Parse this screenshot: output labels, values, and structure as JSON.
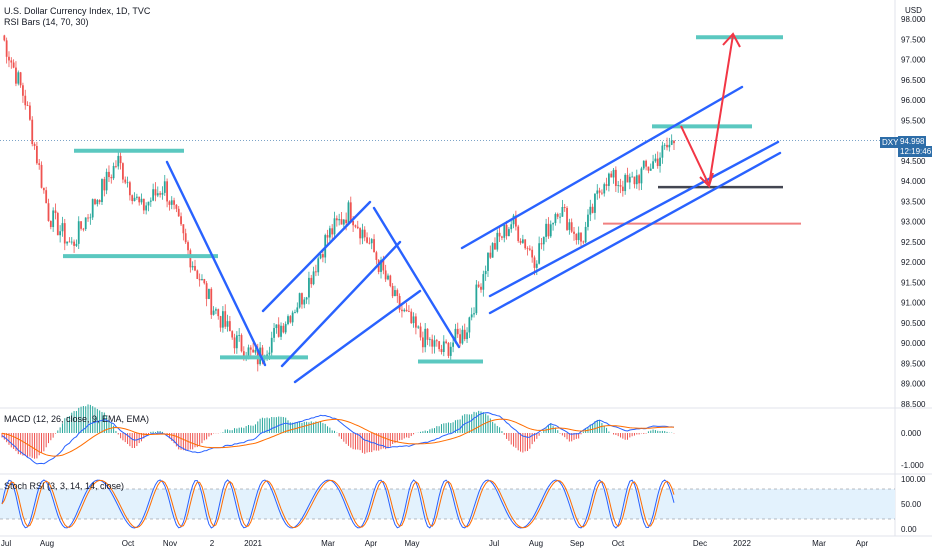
{
  "header": {
    "title": "U.S. Dollar Currency Index, 1D, TVC",
    "indicator": "RSI Bars (14, 70, 30)"
  },
  "price_axis": {
    "currency": "USD",
    "ticks": [
      "98.000",
      "97.500",
      "97.000",
      "96.500",
      "96.000",
      "95.500",
      "95.000",
      "94.500",
      "94.000",
      "93.500",
      "93.000",
      "92.500",
      "92.000",
      "91.500",
      "91.000",
      "90.500",
      "90.000",
      "89.500",
      "89.000",
      "88.500"
    ]
  },
  "last_price": {
    "symbol": "DXY",
    "value": "94.998",
    "countdown": "12:19:46"
  },
  "macd": {
    "label": "MACD (12, 26, close, 9, EMA, EMA)",
    "ticks": [
      "0.000",
      "-1.000"
    ]
  },
  "stoch": {
    "label": "Stoch RSI (3, 3, 14, 14, close)",
    "ticks": [
      "100.00",
      "50.00",
      "0.00"
    ]
  },
  "time_axis": [
    "Jul",
    "Aug",
    "Oct",
    "Nov",
    "2",
    "2021",
    "Mar",
    "Apr",
    "May",
    "Jul",
    "Aug",
    "Sep",
    "Oct",
    "Dec",
    "2022",
    "Mar",
    "Apr"
  ],
  "colors": {
    "up": "#26a69a",
    "down": "#ef5350",
    "trendline": "#2962ff",
    "level": "#5bc8c0",
    "arrow": "#f23645",
    "dark_level": "#434651",
    "red_level": "#f08080"
  },
  "chart_data": {
    "type": "candlestick",
    "title": "U.S. Dollar Currency Index, 1D, TVC",
    "ylim": [
      88.5,
      98.0
    ],
    "close_path": [
      [
        "Jul",
        97.6
      ],
      [
        "Jul",
        96.0
      ],
      [
        "Aug",
        93.2
      ],
      [
        "Aug",
        92.4
      ],
      [
        "Aug",
        93.5
      ],
      [
        "Oct",
        94.5
      ],
      [
        "Oct",
        93.3
      ],
      [
        "Nov",
        93.9
      ],
      [
        "Nov",
        92.3
      ],
      [
        "2",
        91.0
      ],
      [
        "2",
        90.1
      ],
      [
        "2021",
        89.6
      ],
      [
        "2021",
        90.4
      ],
      [
        "Mar",
        91.2
      ],
      [
        "Mar",
        92.6
      ],
      [
        "Apr",
        93.3
      ],
      [
        "Apr",
        92.3
      ],
      [
        "May",
        91.0
      ],
      [
        "May",
        90.2
      ],
      [
        "May",
        89.8
      ],
      [
        "Jul",
        90.3
      ],
      [
        "Jul",
        92.2
      ],
      [
        "Aug",
        93.0
      ],
      [
        "Aug",
        92.1
      ],
      [
        "Sep",
        93.4
      ],
      [
        "Sep",
        92.5
      ],
      [
        "Oct",
        94.1
      ],
      [
        "Oct",
        93.9
      ],
      [
        "Oct",
        94.4
      ],
      [
        "Oct",
        95.0
      ]
    ],
    "annotations": {
      "support_resistance_levels": [
        94.75,
        92.15,
        89.65,
        89.55,
        95.35,
        97.55
      ],
      "target_level": 97.55,
      "dark_level": 93.85,
      "red_level": 92.95
    }
  }
}
